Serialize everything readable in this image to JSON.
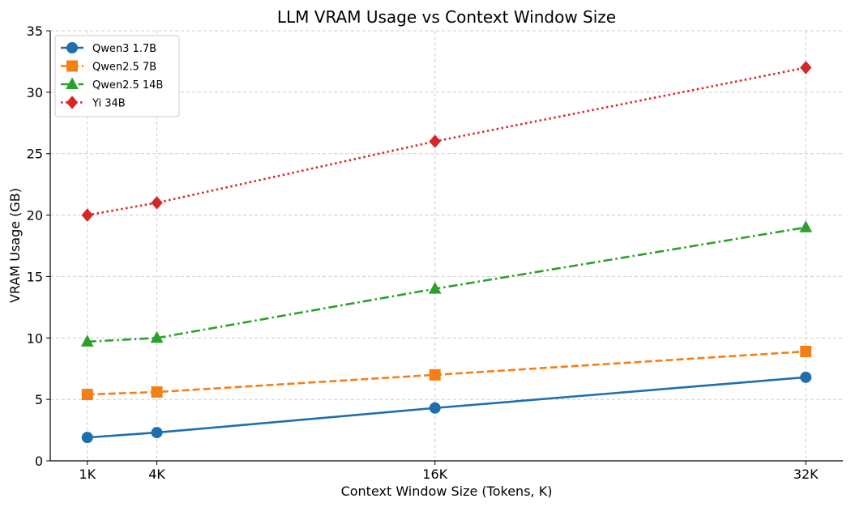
{
  "chart_data": {
    "type": "line",
    "title": "LLM VRAM Usage vs Context Window Size",
    "xlabel": "Context Window Size (Tokens, K)",
    "ylabel": "VRAM Usage (GB)",
    "x": [
      1,
      4,
      16,
      32
    ],
    "x_tick_labels": [
      "1K",
      "4K",
      "16K",
      "32K"
    ],
    "xlim": [
      -0.6,
      33.6
    ],
    "ylim": [
      0,
      35
    ],
    "y_ticks": [
      0,
      5,
      10,
      15,
      20,
      25,
      30,
      35
    ],
    "grid": true,
    "legend_position": "top-left",
    "series": [
      {
        "name": "Qwen3 1.7B",
        "values": [
          1.9,
          2.3,
          4.3,
          6.8
        ],
        "color": "#1f6fae",
        "marker": "circle",
        "line_style": "solid"
      },
      {
        "name": "Qwen2.5 7B",
        "values": [
          5.4,
          5.6,
          7.0,
          8.9
        ],
        "color": "#f57f17",
        "marker": "square",
        "line_style": "dashed"
      },
      {
        "name": "Qwen2.5 14B",
        "values": [
          9.7,
          10.0,
          14.0,
          19.0
        ],
        "color": "#2ca02c",
        "marker": "triangle",
        "line_style": "dashdot"
      },
      {
        "name": "Yi 34B",
        "values": [
          20.0,
          21.0,
          26.0,
          32.0
        ],
        "color": "#d62728",
        "marker": "diamond",
        "line_style": "dotted"
      }
    ]
  }
}
